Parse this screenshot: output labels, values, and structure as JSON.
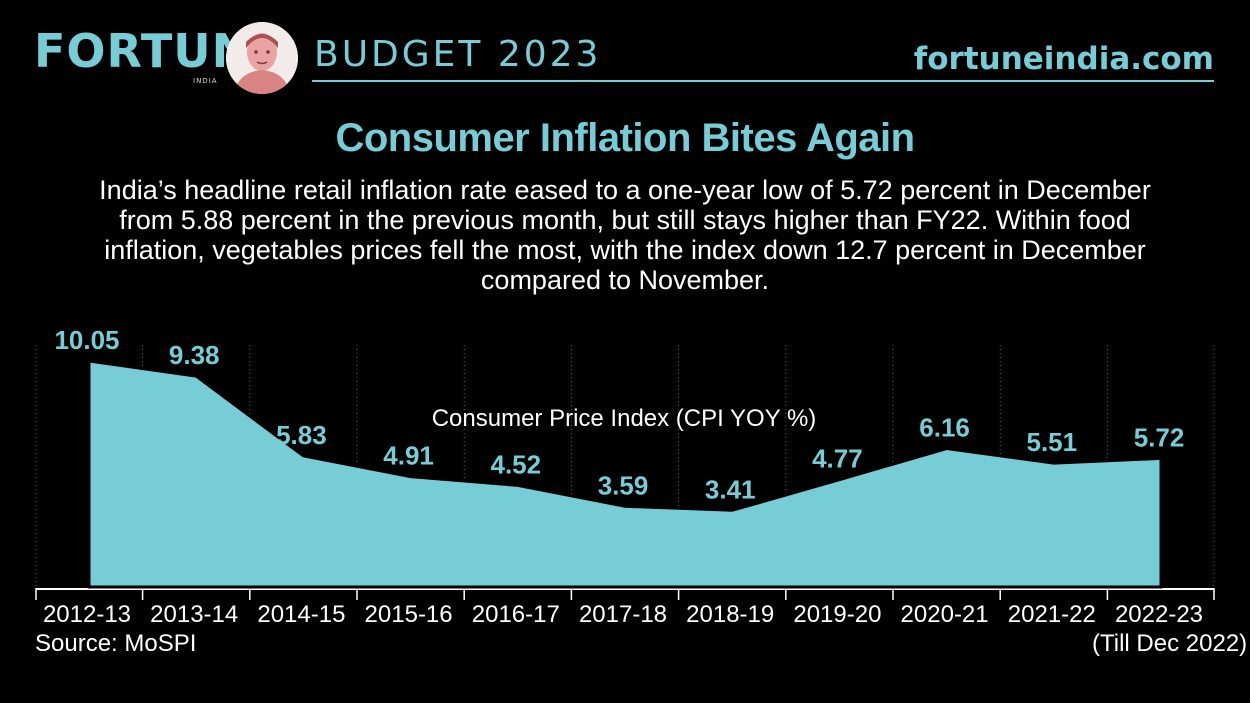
{
  "header": {
    "brand": "FORTUNE",
    "brand_sub": "INDIA",
    "section": "BUDGET 2023",
    "site": "fortuneindia.com",
    "accent": "#76cdd6"
  },
  "title": "Consumer Inflation Bites Again",
  "description": "India’s headline retail inflation rate eased to a one-year low of 5.72 percent in December from 5.88 percent in the previous month, but still stays higher than FY22. Within food inflation, vegetables prices fell the most, with the index down 12.7 percent in December compared to November.",
  "source": "Source: MoSPI",
  "chart_data": {
    "type": "area",
    "title": "Consumer Price Index (CPI YOY %)",
    "categories": [
      "2012-13",
      "2013-14",
      "2014-15",
      "2015-16",
      "2016-17",
      "2017-18",
      "2018-19",
      "2019-20",
      "2020-21",
      "2021-22",
      "2022-23"
    ],
    "values": [
      10.05,
      9.38,
      5.83,
      4.91,
      4.52,
      3.59,
      3.41,
      4.77,
      6.16,
      5.51,
      5.72
    ],
    "value_labels": [
      "10.05",
      "9.38",
      "5.83",
      "4.91",
      "4.52",
      "3.59",
      "3.41",
      "4.77",
      "6.16",
      "5.51",
      "5.72"
    ],
    "last_category_note": "(Till Dec 2022)",
    "ylim": [
      0,
      10.05
    ],
    "grid": "vertical dashed",
    "fill_color": "#76cdd6"
  }
}
